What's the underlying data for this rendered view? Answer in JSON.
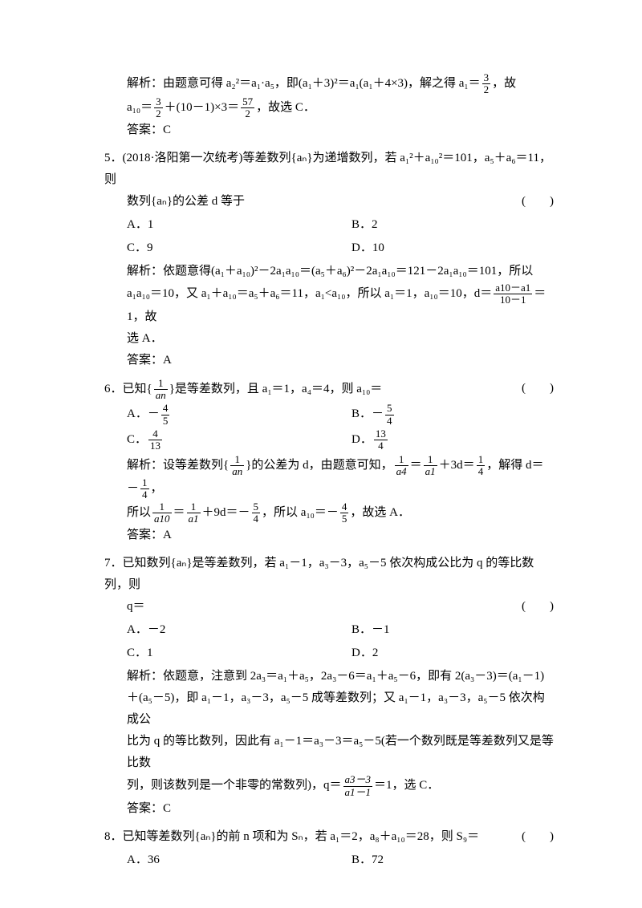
{
  "q4_solution": {
    "line1_pre": "解析：由题意可得 ",
    "line1_mid": "a₂²＝a₁·a₅，即(a₁＋3)²＝a₁(a₁＋4×3)，解之得 a₁＝",
    "f1_num": "3",
    "f1_den": "2",
    "line1_end": "，故",
    "line2_a": "a₁₀＝",
    "f2_num": "3",
    "f2_den": "2",
    "line2_b": "＋(10－1)×3＝",
    "f3_num": "57",
    "f3_den": "2",
    "line2_c": "，故选 C．",
    "ans": "答案：C"
  },
  "q5": {
    "num": "5．",
    "stem1": "(2018·洛阳第一次统考)等差数列{aₙ}为递增数列，若 a₁²＋a₁₀²＝101，a₅＋a₆＝11，则",
    "stem2": "数列{aₙ}的公差 d 等于",
    "paren": "(　　)",
    "optA": "A．1",
    "optB": "B．2",
    "optC": "C．9",
    "optD": "D．10",
    "sol1": "解析：依题意得(a₁＋a₁₀)²－2a₁a₁₀＝(a₅＋a₆)²－2a₁a₁₀＝121－2a₁a₁₀＝101，所以",
    "sol2a": "a₁a₁₀＝10，又 a₁＋a₁₀＝a₅＋a₆＝11，a₁<a₁₀，所以 a₁＝1，a₁₀＝10，d＝",
    "f_num": "a10－a1",
    "f_den": "10－1",
    "sol2b": "＝1，故",
    "sol3": "选 A．",
    "ans": "答案：A"
  },
  "q6": {
    "num": "6．",
    "stem_a": "已知{",
    "f1_num": "1",
    "f1_den": "an",
    "stem_b": "}是等差数列，且 a₁＝1，a₄＝4，则 a₁₀＝",
    "paren": "(　　)",
    "optA_pre": "A．－",
    "optA_num": "4",
    "optA_den": "5",
    "optB_pre": "B．－",
    "optB_num": "5",
    "optB_den": "4",
    "optC_pre": "C．",
    "optC_num": "4",
    "optC_den": "13",
    "optD_pre": "D．",
    "optD_num": "13",
    "optD_den": "4",
    "sol1a": "解析：设等差数列{",
    "sol1_f1n": "1",
    "sol1_f1d": "an",
    "sol1b": "}的公差为 d，由题意可知，",
    "sol1_f2n": "1",
    "sol1_f2d": "a4",
    "sol1c": "＝",
    "sol1_f3n": "1",
    "sol1_f3d": "a1",
    "sol1d": "＋3d＝",
    "sol1_f4n": "1",
    "sol1_f4d": "4",
    "sol1e": "，解得 d＝　　－",
    "sol1_f5n": "1",
    "sol1_f5d": "4",
    "sol1f": "，",
    "sol2a": "所以",
    "sol2_f1n": "1",
    "sol2_f1d": "a10",
    "sol2b": "＝",
    "sol2_f2n": "1",
    "sol2_f2d": "a1",
    "sol2c": "＋9d＝－",
    "sol2_f3n": "5",
    "sol2_f3d": "4",
    "sol2d": "，所以 a₁₀＝－",
    "sol2_f4n": "4",
    "sol2_f4d": "5",
    "sol2e": "，故选 A．",
    "ans": "答案：A"
  },
  "q7": {
    "num": "7．",
    "stem1": "已知数列{aₙ}是等差数列，若 a₁－1，a₃－3，a₅－5 依次构成公比为 q 的等比数列，则",
    "stem2": "q＝",
    "paren": "(　　)",
    "optA": "A．－2",
    "optB": "B．－1",
    "optC": "C．1",
    "optD": "D．2",
    "sol1": "解析：依题意，注意到 2a₃＝a₁＋a₅，2a₃－6＝a₁＋a₅－6，即有 2(a₃－3)＝(a₁－1)",
    "sol2": "＋(a₅－5)，即 a₁－1，a₃－3，a₅－5 成等差数列；又 a₁－1，a₃－3，a₅－5 依次构成公",
    "sol3": "比为 q 的等比数列，因此有 a₁－1＝a₃－3＝a₅－5(若一个数列既是等差数列又是等比数",
    "sol4a": "列，则该数列是一个非零的常数列)，q＝",
    "f_num": "a3－3",
    "f_den": "a1－1",
    "sol4b": "＝1，选 C．",
    "ans": "答案：C"
  },
  "q8": {
    "num": "8．",
    "stem": "已知等差数列{aₙ}的前 n 项和为 Sₙ，若 a₁＝2，a₈＋a₁₀＝28，则 S₉＝",
    "paren": "(　　)",
    "optA": "A．36",
    "optB": "B．72"
  }
}
